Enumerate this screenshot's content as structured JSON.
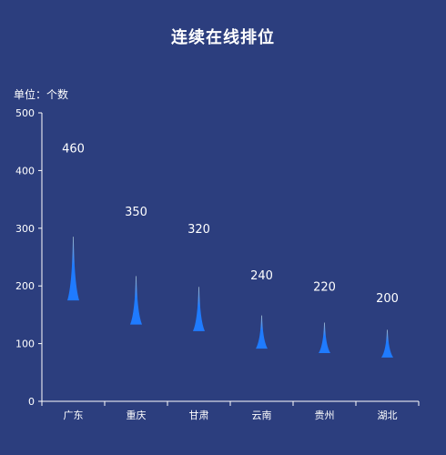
{
  "title": "连续在线排位",
  "unit_label": "单位：个数",
  "colors": {
    "background": "#2c3e7e",
    "bar": "#1f7bff",
    "bar_tip": "#9fb6c8",
    "axis": "#ffffff",
    "label": "#ffffff"
  },
  "chart_data": {
    "type": "bar",
    "title": "连续在线排位",
    "ylabel": "单位：个数",
    "categories": [
      "广东",
      "重庆",
      "甘肃",
      "云南",
      "贵州",
      "湖北"
    ],
    "values": [
      460,
      350,
      320,
      240,
      220,
      200
    ],
    "yticks": [
      0,
      100,
      200,
      300,
      400,
      500
    ],
    "ylim": [
      0,
      500
    ],
    "grid": false,
    "legend": "none"
  }
}
